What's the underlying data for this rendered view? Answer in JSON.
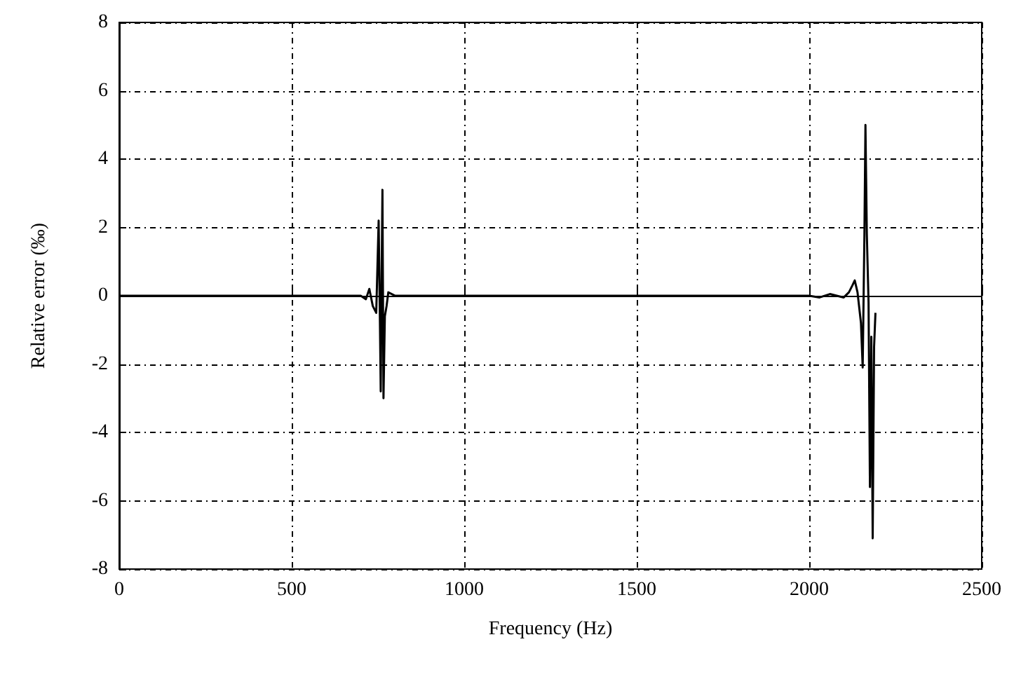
{
  "chart_data": {
    "type": "line",
    "xlabel": "Frequency (Hz)",
    "ylabel": "Relative error (‰)",
    "xlim": [
      0,
      2500
    ],
    "xticks": [
      0,
      500,
      1000,
      1500,
      2000,
      2500
    ],
    "ylim": [
      -8,
      8
    ],
    "yticks": [
      -8,
      -6,
      -4,
      -2,
      0,
      2,
      4,
      6,
      8
    ],
    "grid": true,
    "line_style": "solid",
    "marker": "none",
    "series": [
      {
        "color": "#000000",
        "x": [
          0,
          700,
          715,
          725,
          735,
          745,
          752,
          756,
          758,
          761,
          763,
          766,
          770,
          775,
          780,
          790,
          800,
          2000,
          2030,
          2060,
          2080,
          2100,
          2115,
          2125,
          2132,
          2140,
          2150,
          2155,
          2160,
          2163,
          2167,
          2172,
          2176,
          2180,
          2184,
          2188,
          2192
        ],
        "values": [
          0,
          0,
          -0.1,
          0.2,
          -0.3,
          -0.5,
          2.2,
          -1.0,
          -2.8,
          1.0,
          3.1,
          -3.0,
          -0.6,
          -0.3,
          0.1,
          0.05,
          0,
          0,
          -0.05,
          0.05,
          0,
          -0.05,
          0.1,
          0.3,
          0.45,
          0.1,
          -0.8,
          -2.1,
          1.8,
          5.0,
          1.8,
          -0.2,
          -5.6,
          -1.2,
          -7.1,
          -1.5,
          -0.5
        ]
      }
    ]
  }
}
